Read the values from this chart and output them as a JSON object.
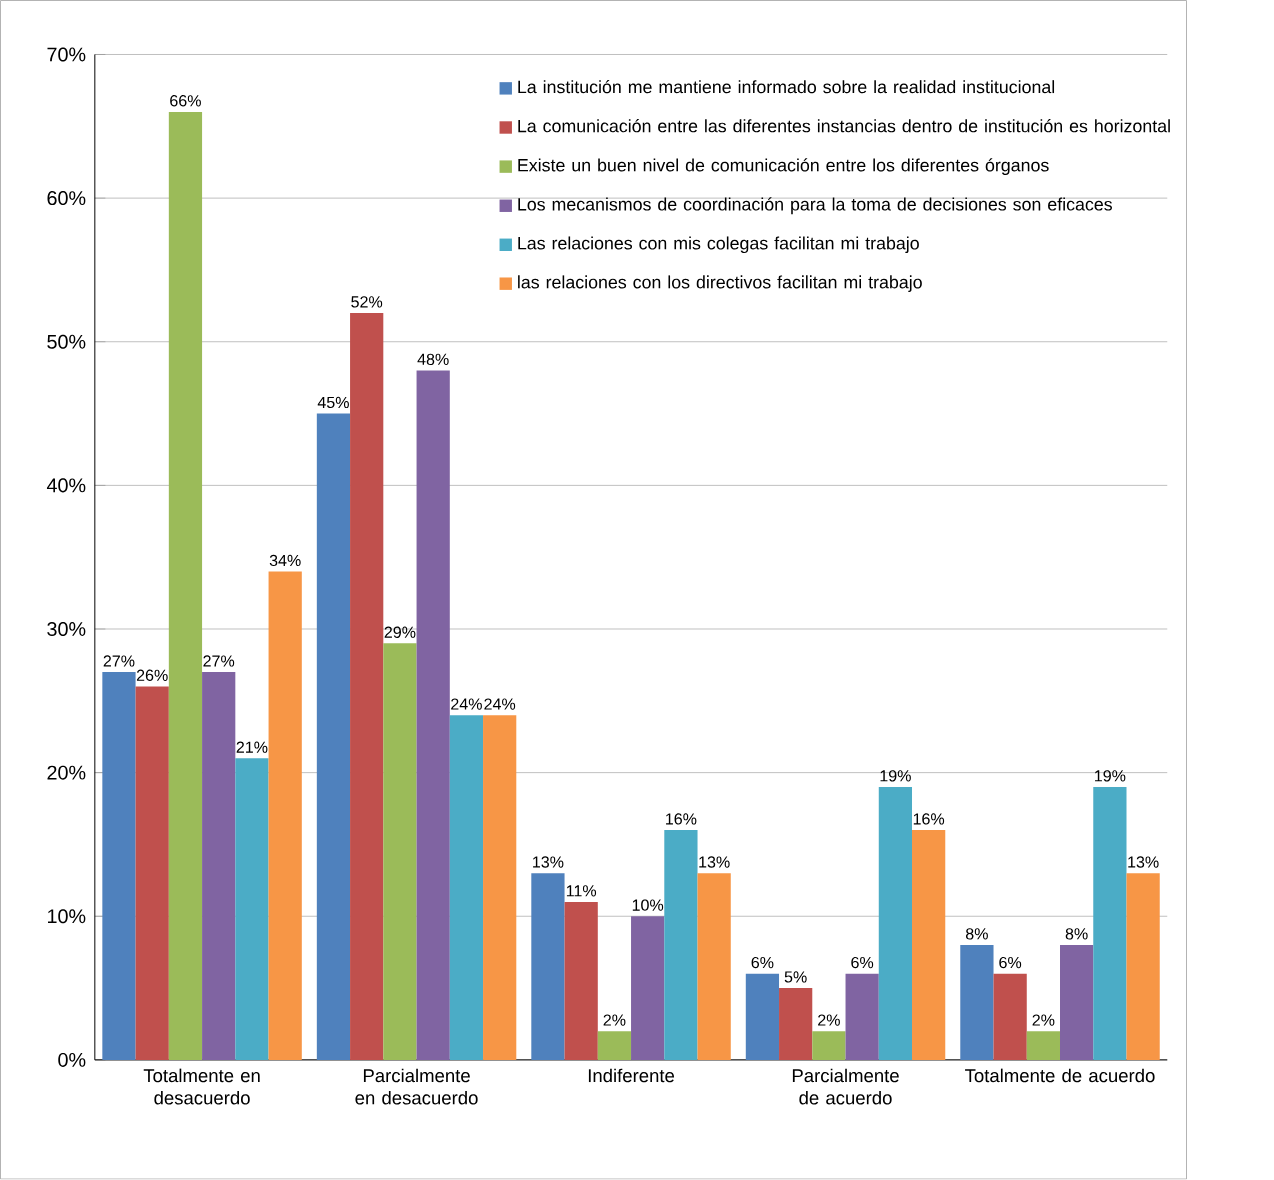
{
  "chart_data": {
    "type": "bar",
    "categories": [
      "Totalmente en desacuerdo",
      "Parcialmente en desacuerdo",
      "Indiferente",
      "Parcialmente de acuerdo",
      "Totalmente de acuerdo"
    ],
    "series": [
      {
        "name": "La institución me mantiene informado sobre la realidad institucional",
        "color": "#4f81bd",
        "values": [
          27,
          45,
          13,
          6,
          8
        ],
        "value_labels": [
          "27%",
          "45%",
          "13%",
          "6%",
          "8%"
        ]
      },
      {
        "name": "La comunicación entre las diferentes instancias dentro de institución es horizontal",
        "color": "#c0504d",
        "values": [
          26,
          52,
          11,
          5,
          6
        ],
        "value_labels": [
          "26%",
          "52%",
          "11%",
          "5%",
          "6%"
        ]
      },
      {
        "name": "Existe un buen nivel de comunicación entre los diferentes órganos",
        "color": "#9bbb59",
        "values": [
          66,
          29,
          2,
          2,
          2
        ],
        "value_labels": [
          "66%",
          "29%",
          "2%",
          "2%",
          "2%"
        ]
      },
      {
        "name": "Los mecanismos de coordinación para la toma de decisiones son eficaces",
        "color": "#8064a2",
        "values": [
          27,
          48,
          10,
          6,
          8
        ],
        "value_labels": [
          "27%",
          "48%",
          "10%",
          "6%",
          "8%"
        ]
      },
      {
        "name": "Las relaciones con mis colegas facilitan mi trabajo",
        "color": "#4bacc6",
        "values": [
          21,
          24,
          16,
          19,
          19
        ],
        "value_labels": [
          "21%",
          "24%",
          "16%",
          "19%",
          "19%"
        ]
      },
      {
        "name": "las relaciones con los directivos facilitan mi trabajo",
        "color": "#f79646",
        "values": [
          34,
          24,
          13,
          16,
          13
        ],
        "value_labels": [
          "34%",
          "24%",
          "13%",
          "16%",
          "13%"
        ]
      }
    ],
    "ylim": [
      0,
      70
    ],
    "yticks": [
      {
        "value": 0,
        "label": "0%"
      },
      {
        "value": 10,
        "label": "10%"
      },
      {
        "value": 20,
        "label": "20%"
      },
      {
        "value": 30,
        "label": "30%"
      },
      {
        "value": 40,
        "label": "40%"
      },
      {
        "value": 50,
        "label": "50%"
      },
      {
        "value": 60,
        "label": "60%"
      },
      {
        "value": 70,
        "label": "70%"
      }
    ],
    "grid": "y",
    "legend": "top right"
  }
}
